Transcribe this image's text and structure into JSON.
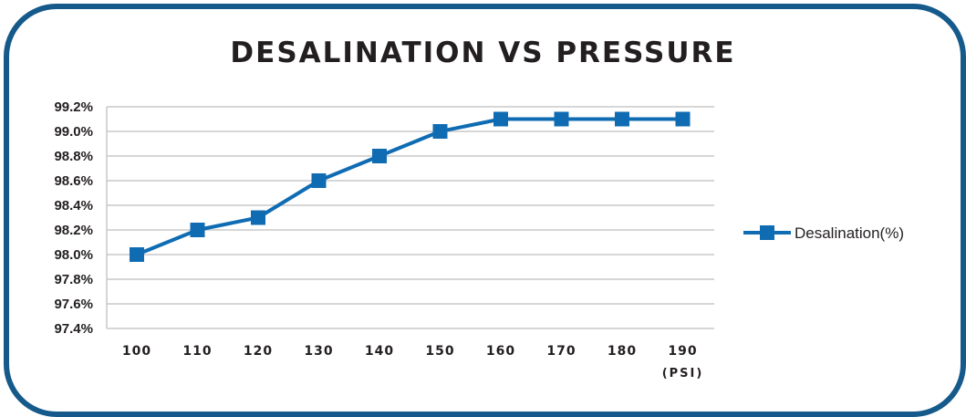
{
  "chart_data": {
    "type": "line",
    "title": "DESALINATION VS PRESSURE",
    "x": [
      "100",
      "110",
      "120",
      "130",
      "140",
      "150",
      "160",
      "170",
      "180",
      "190"
    ],
    "x_unit_label": "(PSI)",
    "series": [
      {
        "name": "Desalination(%)",
        "values": [
          98.0,
          98.2,
          98.3,
          98.6,
          98.8,
          99.0,
          99.1,
          99.1,
          99.1,
          99.1
        ],
        "color": "#0f6cb3",
        "marker": "square"
      }
    ],
    "y_ticks": [
      "97.4%",
      "97.6%",
      "97.8%",
      "98.0%",
      "98.2%",
      "98.4%",
      "98.6%",
      "98.8%",
      "99.0%",
      "99.2%"
    ],
    "ylim": [
      97.4,
      99.2
    ],
    "grid": true,
    "legend": "right"
  },
  "colors": {
    "frame": "#155a8a",
    "series": "#0f6cb3",
    "grid": "#c8c8c8"
  }
}
